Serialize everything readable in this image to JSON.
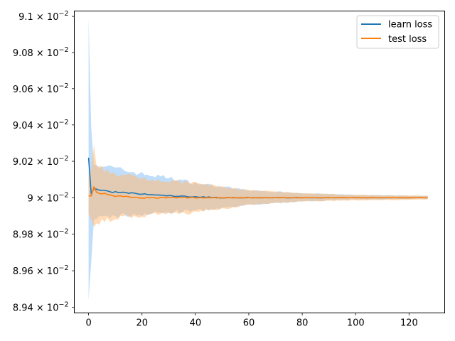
{
  "chart_data": {
    "type": "line",
    "title": "",
    "xlabel": "",
    "ylabel": "",
    "xlim": [
      -5.35,
      133.35
    ],
    "ylim": [
      0.08937,
      0.09103
    ],
    "yscale": "log",
    "x_ticks": [
      0,
      20,
      40,
      60,
      80,
      100,
      120
    ],
    "x_tick_labels": [
      "0",
      "20",
      "40",
      "60",
      "80",
      "100",
      "120"
    ],
    "y_ticks": [
      0.0894,
      0.0896,
      0.0898,
      0.09,
      0.0902,
      0.0904,
      0.0906,
      0.0908,
      0.091
    ],
    "y_tick_labels": [
      {
        "mantissa": "8.94",
        "exp": "−2"
      },
      {
        "mantissa": "8.96",
        "exp": "−2"
      },
      {
        "mantissa": "8.98",
        "exp": "−2"
      },
      {
        "mantissa": "9",
        "exp": "−2"
      },
      {
        "mantissa": "9.02",
        "exp": "−2"
      },
      {
        "mantissa": "9.04",
        "exp": "−2"
      },
      {
        "mantissa": "9.06",
        "exp": "−2"
      },
      {
        "mantissa": "9.08",
        "exp": "−2"
      },
      {
        "mantissa": "9.1",
        "exp": "−2"
      }
    ],
    "legend_position": "top-right",
    "grid": false,
    "n_points": 128,
    "series": [
      {
        "name": "learn loss",
        "color": "#1f77b4",
        "band_color": "#74b5f5",
        "band_opacity": 0.45,
        "keypoints": [
          [
            0,
            0.09022,
            0.08944,
            0.09099
          ],
          [
            1,
            0.09002,
            0.08965,
            0.09038
          ],
          [
            2,
            0.09005,
            0.08988,
            0.09018
          ],
          [
            5,
            0.09004,
            0.08989,
            0.09018
          ],
          [
            10,
            0.09003,
            0.0899,
            0.09016
          ],
          [
            20,
            0.09002,
            0.08991,
            0.09013
          ],
          [
            30,
            0.09001,
            0.08992,
            0.09011
          ],
          [
            40,
            0.090005,
            0.08993,
            0.09008
          ],
          [
            50,
            0.09,
            0.08994,
            0.09006
          ],
          [
            60,
            0.09,
            0.08996,
            0.09004
          ],
          [
            80,
            0.09,
            0.08998,
            0.090025
          ],
          [
            100,
            0.09,
            0.08999,
            0.090015
          ],
          [
            127,
            0.09,
            0.089995,
            0.09001
          ]
        ]
      },
      {
        "name": "test loss",
        "color": "#ff7f0e",
        "band_color": "#ffbb78",
        "band_opacity": 0.55,
        "keypoints": [
          [
            0,
            0.09001,
            0.08991,
            0.09011
          ],
          [
            1,
            0.09001,
            0.08988,
            0.09015
          ],
          [
            2,
            0.09006,
            0.08984,
            0.09029
          ],
          [
            3,
            0.09003,
            0.08986,
            0.09017
          ],
          [
            10,
            0.09001,
            0.08989,
            0.09013
          ],
          [
            20,
            0.09,
            0.0899,
            0.09011
          ],
          [
            30,
            0.09,
            0.08991,
            0.09009
          ],
          [
            40,
            0.09,
            0.08992,
            0.09008
          ],
          [
            50,
            0.09,
            0.08994,
            0.09006
          ],
          [
            60,
            0.09,
            0.08996,
            0.09004
          ],
          [
            80,
            0.09,
            0.08998,
            0.090025
          ],
          [
            100,
            0.09,
            0.089985,
            0.090015
          ],
          [
            127,
            0.09,
            0.08999,
            0.09001
          ]
        ]
      }
    ]
  }
}
